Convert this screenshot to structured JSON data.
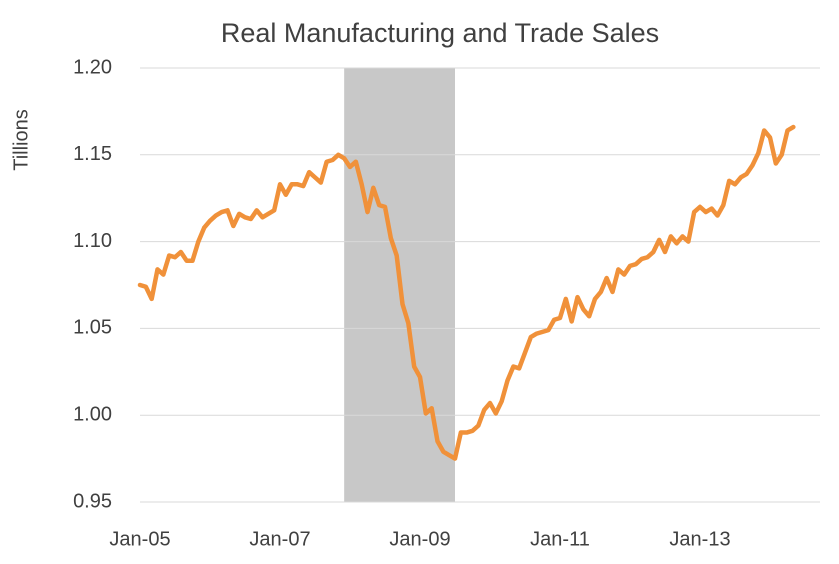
{
  "chart_data": {
    "type": "line",
    "title": "Real Manufacturing and Trade Sales",
    "y_label": "Tillions",
    "categories": [
      "Jan-05",
      null,
      null,
      null,
      null,
      null,
      null,
      null,
      null,
      null,
      null,
      null,
      null,
      null,
      null,
      null,
      null,
      null,
      null,
      null,
      null,
      null,
      null,
      null,
      "Jan-07",
      null,
      null,
      null,
      null,
      null,
      null,
      null,
      null,
      null,
      null,
      null,
      null,
      null,
      null,
      null,
      null,
      null,
      null,
      null,
      null,
      null,
      null,
      null,
      "Jan-09",
      null,
      null,
      null,
      null,
      null,
      null,
      null,
      null,
      null,
      null,
      null,
      null,
      null,
      null,
      null,
      null,
      null,
      null,
      null,
      null,
      null,
      null,
      null,
      "Jan-11",
      null,
      null,
      null,
      null,
      null,
      null,
      null,
      null,
      null,
      null,
      null,
      null,
      null,
      null,
      null,
      null,
      null,
      null,
      null,
      null,
      null,
      null,
      null,
      "Jan-13",
      null,
      null,
      null,
      null,
      null,
      null,
      null,
      null,
      null,
      null,
      null,
      null,
      null,
      null,
      null,
      null
    ],
    "series": [
      {
        "color": "#f0913a",
        "values": [
          1.075,
          1.074,
          1.067,
          1.084,
          1.081,
          1.092,
          1.091,
          1.094,
          1.089,
          1.089,
          1.1,
          1.108,
          1.112,
          1.115,
          1.117,
          1.118,
          1.109,
          1.116,
          1.114,
          1.113,
          1.118,
          1.114,
          1.116,
          1.118,
          1.133,
          1.127,
          1.133,
          1.133,
          1.132,
          1.14,
          1.137,
          1.134,
          1.146,
          1.147,
          1.15,
          1.148,
          1.143,
          1.146,
          1.133,
          1.117,
          1.131,
          1.121,
          1.12,
          1.102,
          1.092,
          1.064,
          1.053,
          1.028,
          1.022,
          1.001,
          1.004,
          0.985,
          0.979,
          0.977,
          0.975,
          0.99,
          0.99,
          0.991,
          0.994,
          1.003,
          1.007,
          1.001,
          1.008,
          1.02,
          1.028,
          1.027,
          1.036,
          1.045,
          1.047,
          1.048,
          1.049,
          1.055,
          1.056,
          1.067,
          1.054,
          1.068,
          1.061,
          1.057,
          1.067,
          1.071,
          1.079,
          1.071,
          1.084,
          1.081,
          1.086,
          1.087,
          1.09,
          1.091,
          1.094,
          1.101,
          1.094,
          1.103,
          1.099,
          1.103,
          1.1,
          1.117,
          1.12,
          1.117,
          1.119,
          1.115,
          1.121,
          1.135,
          1.133,
          1.137,
          1.139,
          1.144,
          1.151,
          1.164,
          1.16,
          1.145,
          1.15,
          1.164,
          1.166
        ]
      }
    ],
    "shaded_ranges": [
      {
        "start": 35,
        "end": 54,
        "color": "#c8c8c8"
      }
    ],
    "ylim": [
      0.95,
      1.2
    ],
    "yticks": [
      {
        "value": 0.95,
        "label": "0.95"
      },
      {
        "value": 1.0,
        "label": "1.00"
      },
      {
        "value": 1.05,
        "label": "1.05"
      },
      {
        "value": 1.1,
        "label": "1.10"
      },
      {
        "value": 1.15,
        "label": "1.15"
      },
      {
        "value": 1.2,
        "label": "1.20"
      }
    ],
    "grid": true
  }
}
